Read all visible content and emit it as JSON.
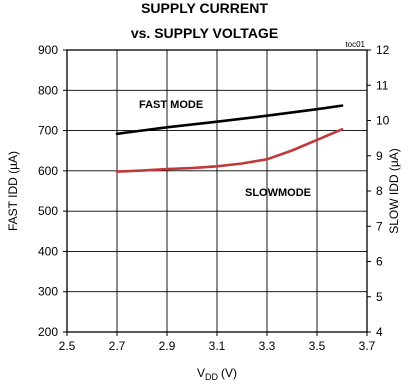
{
  "chart_data": {
    "type": "line",
    "title": "SUPPLY CURRENT",
    "subtitle": "vs. SUPPLY VOLTAGE",
    "note": "toc01",
    "xlabel": "V",
    "xlabel_sub": "DD",
    "xlabel_unit": "(V)",
    "ylabel": "FAST IDD (µA)",
    "y2label": "SLOW IDD (µA)",
    "xlim": [
      2.5,
      3.7
    ],
    "ylim": [
      200,
      900
    ],
    "y2lim": [
      4,
      12
    ],
    "xticks": [
      "2.5",
      "2.7",
      "2.9",
      "3.1",
      "3.3",
      "3.5",
      "3.7"
    ],
    "yticks": [
      "200",
      "300",
      "400",
      "500",
      "600",
      "700",
      "800",
      "900"
    ],
    "y2ticks": [
      "4",
      "5",
      "6",
      "7",
      "8",
      "9",
      "10",
      "11",
      "12"
    ],
    "grid": true,
    "series": [
      {
        "name": "FAST MODE",
        "axis": "left",
        "color": "#000000",
        "x": [
          2.7,
          2.9,
          3.1,
          3.3,
          3.5,
          3.6
        ],
        "y": [
          692,
          708,
          722,
          737,
          753,
          762
        ]
      },
      {
        "name": "SLOWMODE",
        "axis": "right",
        "color": "#c0393b",
        "x": [
          2.7,
          2.8,
          2.9,
          3.0,
          3.1,
          3.2,
          3.3,
          3.4,
          3.5,
          3.6
        ],
        "y": [
          8.55,
          8.58,
          8.62,
          8.65,
          8.7,
          8.78,
          8.9,
          9.15,
          9.45,
          9.75
        ]
      }
    ]
  }
}
